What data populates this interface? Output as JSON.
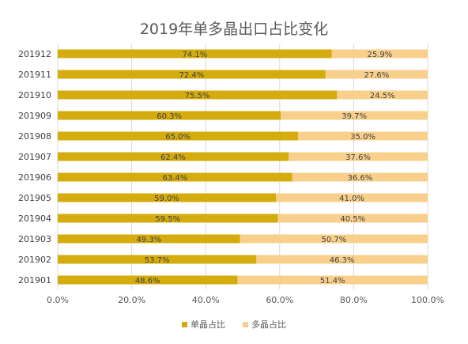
{
  "chart_data": {
    "type": "bar",
    "orientation": "horizontal",
    "stacked": true,
    "title": "2019年单多晶出口占比变化",
    "categories": [
      "201912",
      "201911",
      "201910",
      "201909",
      "201908",
      "201907",
      "201906",
      "201905",
      "201904",
      "201903",
      "201902",
      "201901"
    ],
    "series": [
      {
        "name": "单晶占比",
        "color": "#d4ac0d",
        "values": [
          74.1,
          72.4,
          75.5,
          60.3,
          65.0,
          62.4,
          63.4,
          59.0,
          59.5,
          49.3,
          53.7,
          48.6
        ],
        "labels": [
          "74.1%",
          "72.4%",
          "75.5%",
          "60.3%",
          "65.0%",
          "62.4%",
          "63.4%",
          "59.0%",
          "59.5%",
          "49.3%",
          "53.7%",
          "48.6%"
        ]
      },
      {
        "name": "多晶占比",
        "color": "#f8d08b",
        "values": [
          25.9,
          27.6,
          24.5,
          39.7,
          35.0,
          37.6,
          36.6,
          41.0,
          40.5,
          50.7,
          46.3,
          51.4
        ],
        "labels": [
          "25.9%",
          "27.6%",
          "24.5%",
          "39.7%",
          "35.0%",
          "37.6%",
          "36.6%",
          "41.0%",
          "40.5%",
          "50.7%",
          "46.3%",
          "51.4%"
        ]
      }
    ],
    "xlim": [
      0,
      100
    ],
    "xticks": [
      0,
      20,
      40,
      60,
      80,
      100
    ],
    "xtick_labels": [
      "0.0%",
      "20.0%",
      "40.0%",
      "60.0%",
      "80.0%",
      "100.0%"
    ],
    "grid": true,
    "legend_position": "bottom"
  }
}
